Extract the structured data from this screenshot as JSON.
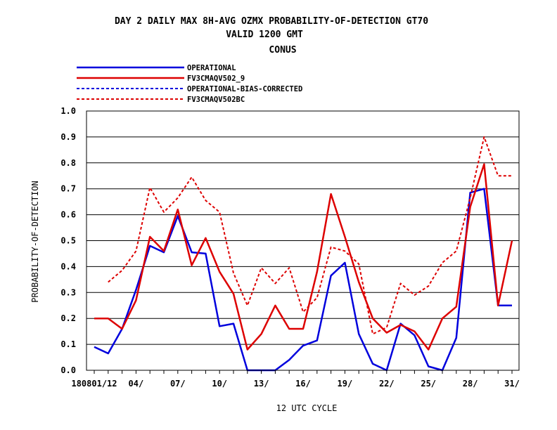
{
  "chart_data": {
    "type": "line",
    "title_lines": [
      "DAY 2 DAILY MAX   8H-AVG OZMX PROBABILITY-OF-DETECTION GT70",
      "VALID 1200 GMT",
      "CONUS"
    ],
    "xlabel": "12 UTC CYCLE",
    "ylabel": "PROBABILITY-OF-DETECTION",
    "ylim": [
      0,
      1.0
    ],
    "yticks": [
      "0.0",
      "0.1",
      "0.2",
      "0.3",
      "0.4",
      "0.5",
      "0.6",
      "0.7",
      "0.8",
      "0.9",
      "1.0"
    ],
    "xlim": [
      1,
      31
    ],
    "xtick_labels": [
      {
        "day": 1,
        "label": "180801/12"
      },
      {
        "day": 4,
        "label": "04/"
      },
      {
        "day": 7,
        "label": "07/"
      },
      {
        "day": 10,
        "label": "10/"
      },
      {
        "day": 13,
        "label": "13/"
      },
      {
        "day": 16,
        "label": "16/"
      },
      {
        "day": 19,
        "label": "19/"
      },
      {
        "day": 22,
        "label": "22/"
      },
      {
        "day": 25,
        "label": "25/"
      },
      {
        "day": 28,
        "label": "28/"
      },
      {
        "day": 31,
        "label": "31/"
      }
    ],
    "grid": "horizontal",
    "legend_position": "top-left",
    "series": [
      {
        "name": "OPERATIONAL",
        "color": "#0000dd",
        "style": "solid",
        "points": [
          [
            1,
            0.09
          ],
          [
            2,
            0.065
          ],
          [
            3,
            0.16
          ],
          [
            4,
            0.31
          ],
          [
            5,
            0.48
          ],
          [
            6,
            0.455
          ],
          [
            7,
            0.595
          ],
          [
            8,
            0.455
          ],
          [
            9,
            0.45
          ],
          [
            10,
            0.17
          ],
          [
            11,
            0.18
          ],
          [
            12,
            0.0
          ],
          [
            13,
            0.0
          ],
          [
            14,
            0.0
          ],
          [
            15,
            0.04
          ],
          [
            16,
            0.095
          ],
          [
            17,
            0.115
          ],
          [
            18,
            0.365
          ],
          [
            19,
            0.415
          ],
          [
            20,
            0.14
          ],
          [
            21,
            0.025
          ],
          [
            22,
            0.0
          ],
          [
            23,
            0.18
          ],
          [
            24,
            0.135
          ],
          [
            25,
            0.015
          ],
          [
            26,
            0.0
          ],
          [
            27,
            0.125
          ],
          [
            28,
            0.685
          ],
          [
            29,
            0.7
          ],
          [
            30,
            0.25
          ],
          [
            31,
            0.25
          ]
        ]
      },
      {
        "name": "FV3CMAQV502_9",
        "color": "#dd0000",
        "style": "solid",
        "points": [
          [
            1,
            0.2
          ],
          [
            2,
            0.2
          ],
          [
            3,
            0.16
          ],
          [
            4,
            0.27
          ],
          [
            5,
            0.515
          ],
          [
            6,
            0.46
          ],
          [
            7,
            0.62
          ],
          [
            8,
            0.405
          ],
          [
            9,
            0.51
          ],
          [
            10,
            0.38
          ],
          [
            11,
            0.295
          ],
          [
            12,
            0.08
          ],
          [
            13,
            0.14
          ],
          [
            14,
            0.25
          ],
          [
            15,
            0.16
          ],
          [
            16,
            0.16
          ],
          [
            17,
            0.38
          ],
          [
            18,
            0.68
          ],
          [
            19,
            0.515
          ],
          [
            20,
            0.34
          ],
          [
            21,
            0.2
          ],
          [
            22,
            0.145
          ],
          [
            23,
            0.175
          ],
          [
            24,
            0.15
          ],
          [
            25,
            0.08
          ],
          [
            26,
            0.2
          ],
          [
            27,
            0.245
          ],
          [
            28,
            0.63
          ],
          [
            29,
            0.795
          ],
          [
            30,
            0.25
          ],
          [
            31,
            0.5
          ]
        ]
      },
      {
        "name": "OPERATIONAL-BIAS-CORRECTED",
        "color": "#0000dd",
        "style": "dashed",
        "points": []
      },
      {
        "name": "FV3CMAQV502BC",
        "color": "#dd0000",
        "style": "dashed",
        "points": [
          [
            2,
            0.34
          ],
          [
            3,
            0.385
          ],
          [
            4,
            0.46
          ],
          [
            5,
            0.705
          ],
          [
            6,
            0.61
          ],
          [
            7,
            0.665
          ],
          [
            8,
            0.745
          ],
          [
            9,
            0.655
          ],
          [
            10,
            0.61
          ],
          [
            11,
            0.375
          ],
          [
            12,
            0.25
          ],
          [
            13,
            0.395
          ],
          [
            14,
            0.335
          ],
          [
            15,
            0.395
          ],
          [
            16,
            0.225
          ],
          [
            17,
            0.28
          ],
          [
            18,
            0.475
          ],
          [
            19,
            0.46
          ],
          [
            20,
            0.41
          ],
          [
            21,
            0.14
          ],
          [
            22,
            0.165
          ],
          [
            23,
            0.335
          ],
          [
            24,
            0.29
          ],
          [
            25,
            0.325
          ],
          [
            26,
            0.415
          ],
          [
            27,
            0.46
          ],
          [
            28,
            0.665
          ],
          [
            29,
            0.9
          ],
          [
            30,
            0.75
          ],
          [
            31,
            0.75
          ]
        ]
      }
    ]
  }
}
